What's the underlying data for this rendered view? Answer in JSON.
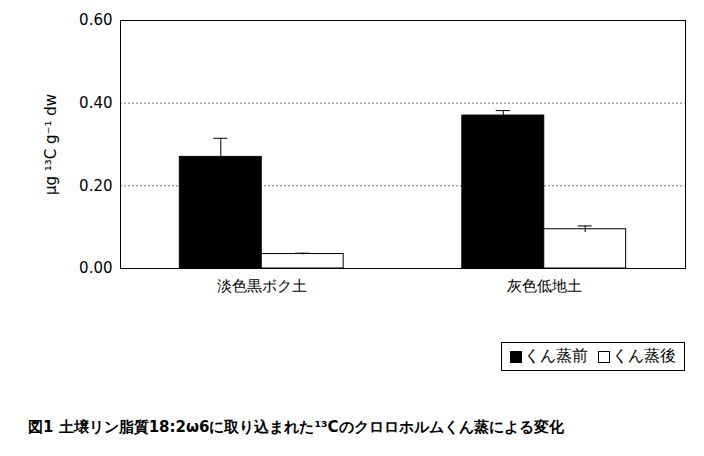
{
  "chart_data": {
    "type": "bar",
    "title": "図1 土壌リン脂質18:2ω6に取り込まれた¹³Cのクロロホルムくん蒸による変化",
    "y_label": "μg ¹³C g⁻¹ dw",
    "categories": [
      "淡色黒ボク土",
      "灰色低地土"
    ],
    "series": [
      {
        "name": "くん蒸前",
        "color": "#000000",
        "values": [
          0.27,
          0.37
        ],
        "errors": [
          0.045,
          0.012
        ]
      },
      {
        "name": "くん蒸後",
        "color": "#ffffff",
        "values": [
          0.035,
          0.095
        ],
        "errors": [
          0.002,
          0.008
        ]
      }
    ],
    "ylim": [
      0,
      0.6
    ],
    "yticks": [
      {
        "value": 0,
        "label": "0.00"
      },
      {
        "value": 0.2,
        "label": "0.20"
      },
      {
        "value": 0.4,
        "label": "0.40"
      },
      {
        "value": 0.6,
        "label": "0.60"
      }
    ],
    "grid": true,
    "legend": "bottom right"
  }
}
